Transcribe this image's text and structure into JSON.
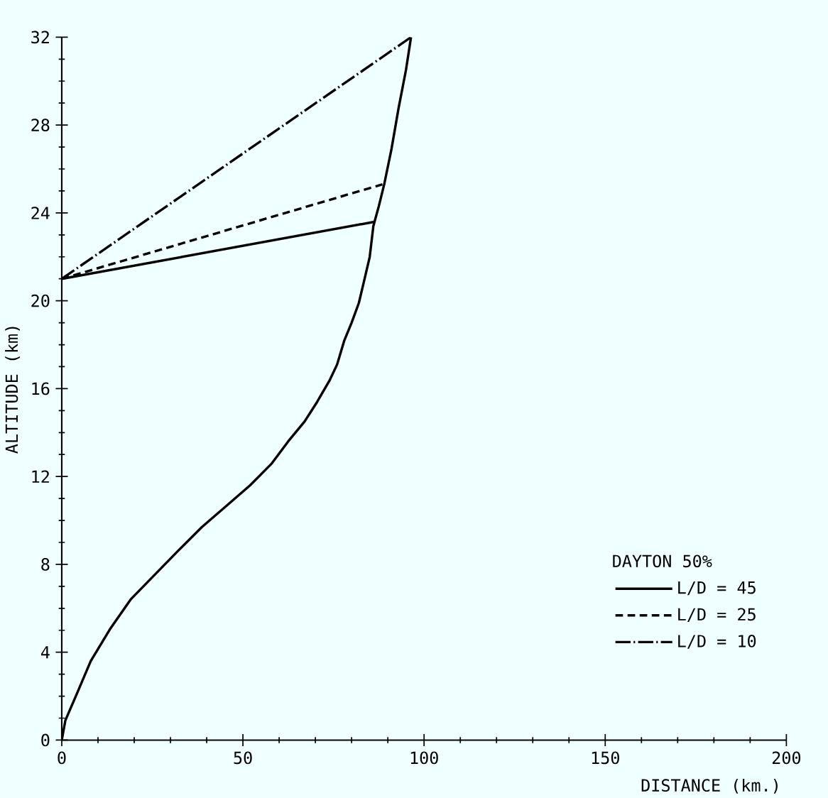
{
  "chart_data": {
    "type": "line",
    "xlabel": "DISTANCE (km.)",
    "ylabel": "ALTITUDE (km)",
    "legend_title": "DAYTON 50%",
    "legend": "bottom right",
    "grid": false,
    "marker": "none",
    "xlim": [
      0,
      200
    ],
    "ylim": [
      0,
      32
    ],
    "xticks": [
      0,
      50,
      100,
      150,
      200
    ],
    "yticks": [
      0,
      4,
      8,
      12,
      16,
      20,
      24,
      28,
      32
    ],
    "series": [
      {
        "color": "#000000",
        "line_style": "solid",
        "x": [
          0,
          1,
          4.4,
          8,
          13.5,
          19,
          25.5,
          32,
          38.7,
          45,
          52,
          58,
          62.5,
          67,
          70.5,
          74,
          76,
          78,
          80,
          82,
          83.3,
          85,
          86,
          87.5,
          89,
          91,
          93,
          95,
          96.4
        ],
        "values": [
          0,
          0.9,
          2.2,
          3.6,
          5.1,
          6.4,
          7.5,
          8.6,
          9.7,
          10.6,
          11.6,
          12.6,
          13.6,
          14.5,
          15.4,
          16.4,
          17.1,
          18.2,
          19.0,
          19.9,
          20.8,
          22.0,
          23.4,
          24.3,
          25.3,
          26.9,
          28.8,
          30.5,
          32.0
        ]
      },
      {
        "name": "L/D = 45",
        "color": "#000000",
        "line_style": "solid",
        "x": [
          0,
          86.5
        ],
        "values": [
          21.0,
          23.6
        ]
      },
      {
        "name": "L/D = 25",
        "color": "#000000",
        "line_style": "dashed",
        "x": [
          0,
          88.5
        ],
        "values": [
          21.0,
          25.3
        ]
      },
      {
        "name": "L/D = 10",
        "color": "#000000",
        "line_style": "dashdot",
        "x": [
          0,
          96.4
        ],
        "values": [
          21.0,
          32.0
        ]
      }
    ]
  }
}
